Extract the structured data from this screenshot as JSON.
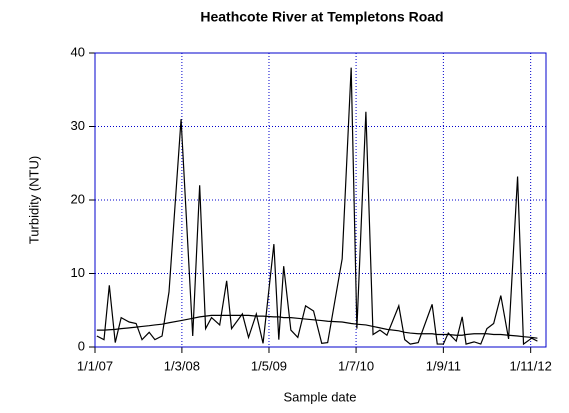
{
  "chart_data": {
    "type": "line",
    "title": "Heathcote River at Templetons Road",
    "xlabel": "Sample date",
    "ylabel": "Turbidity (NTU)",
    "x": [
      "2007-01-10",
      "2007-02-14",
      "2007-03-12",
      "2007-04-10",
      "2007-05-09",
      "2007-06-17",
      "2007-07-21",
      "2007-08-19",
      "2007-09-23",
      "2007-10-21",
      "2007-11-25",
      "2007-12-29",
      "2008-02-26",
      "2008-04-23",
      "2008-05-27",
      "2008-06-25",
      "2008-07-24",
      "2008-09-02",
      "2008-10-06",
      "2008-10-30",
      "2008-12-22",
      "2009-01-21",
      "2009-02-28",
      "2009-04-02",
      "2009-05-25",
      "2009-06-18",
      "2009-07-12",
      "2009-08-16",
      "2009-09-19",
      "2009-10-27",
      "2009-12-05",
      "2010-01-14",
      "2010-02-12",
      "2010-04-24",
      "2010-06-07",
      "2010-07-05",
      "2010-08-18",
      "2010-09-22",
      "2010-10-26",
      "2010-11-29",
      "2011-01-26",
      "2011-02-24",
      "2011-03-23",
      "2011-05-01",
      "2011-07-08",
      "2011-08-02",
      "2011-09-01",
      "2011-09-25",
      "2011-11-03",
      "2011-12-02",
      "2011-12-21",
      "2012-01-29",
      "2012-03-02",
      "2012-04-01",
      "2012-05-04",
      "2012-06-08",
      "2012-07-16",
      "2012-08-29",
      "2012-09-27",
      "2012-11-06",
      "2012-12-04"
    ],
    "series": [
      {
        "color": "#000000",
        "values": [
          1.5,
          1,
          8.4,
          0.6,
          4,
          3.4,
          3.2,
          1,
          2,
          1,
          1.5,
          7.5,
          31,
          1.5,
          22,
          2.5,
          4,
          3,
          9,
          2.5,
          4.5,
          1.3,
          4.5,
          0.5,
          14,
          1,
          11,
          2.3,
          1.3,
          5.6,
          4.9,
          0.5,
          0.6,
          12,
          38,
          2.5,
          32,
          1.7,
          2.3,
          1.6,
          5.6,
          1,
          0.4,
          0.6,
          5.8,
          0.4,
          0.4,
          1.9,
          0.8,
          4.1,
          0.4,
          0.7,
          0.4,
          2.5,
          3.2,
          7,
          1.1,
          23.2,
          0.4,
          1.2,
          0.8
        ]
      },
      {
        "color": "#000000",
        "values": [
          2.3,
          2.3,
          2.35,
          2.4,
          2.5,
          2.6,
          2.7,
          2.8,
          2.9,
          3.0,
          3.1,
          3.3,
          3.6,
          3.9,
          4.1,
          4.2,
          4.3,
          4.3,
          4.3,
          4.3,
          4.3,
          4.3,
          4.2,
          4.2,
          4.1,
          4.1,
          4.0,
          4.0,
          3.9,
          3.8,
          3.7,
          3.6,
          3.5,
          3.4,
          3.2,
          3.1,
          3.0,
          2.8,
          2.6,
          2.4,
          2.2,
          2.0,
          1.9,
          1.8,
          1.8,
          1.7,
          1.7,
          1.7,
          1.6,
          1.6,
          1.7,
          1.8,
          1.8,
          1.8,
          1.7,
          1.7,
          1.6,
          1.5,
          1.4,
          1.3,
          1.2
        ]
      }
    ],
    "xlim": [
      "2007-01-01",
      "2013-01-15"
    ],
    "xticks": [
      {
        "value": "2007-01-01",
        "label": "1/1/07"
      },
      {
        "value": "2008-03-01",
        "label": "1/3/08"
      },
      {
        "value": "2009-05-01",
        "label": "1/5/09"
      },
      {
        "value": "2010-07-01",
        "label": "1/7/10"
      },
      {
        "value": "2011-09-01",
        "label": "1/9/11"
      },
      {
        "value": "2012-11-01",
        "label": "1/11/12"
      }
    ],
    "ylim": [
      0,
      40
    ],
    "yticks": [
      0,
      10,
      20,
      30,
      40
    ],
    "grid": true,
    "grid_color": "#0000cc",
    "axis_color": "#0000cc"
  }
}
